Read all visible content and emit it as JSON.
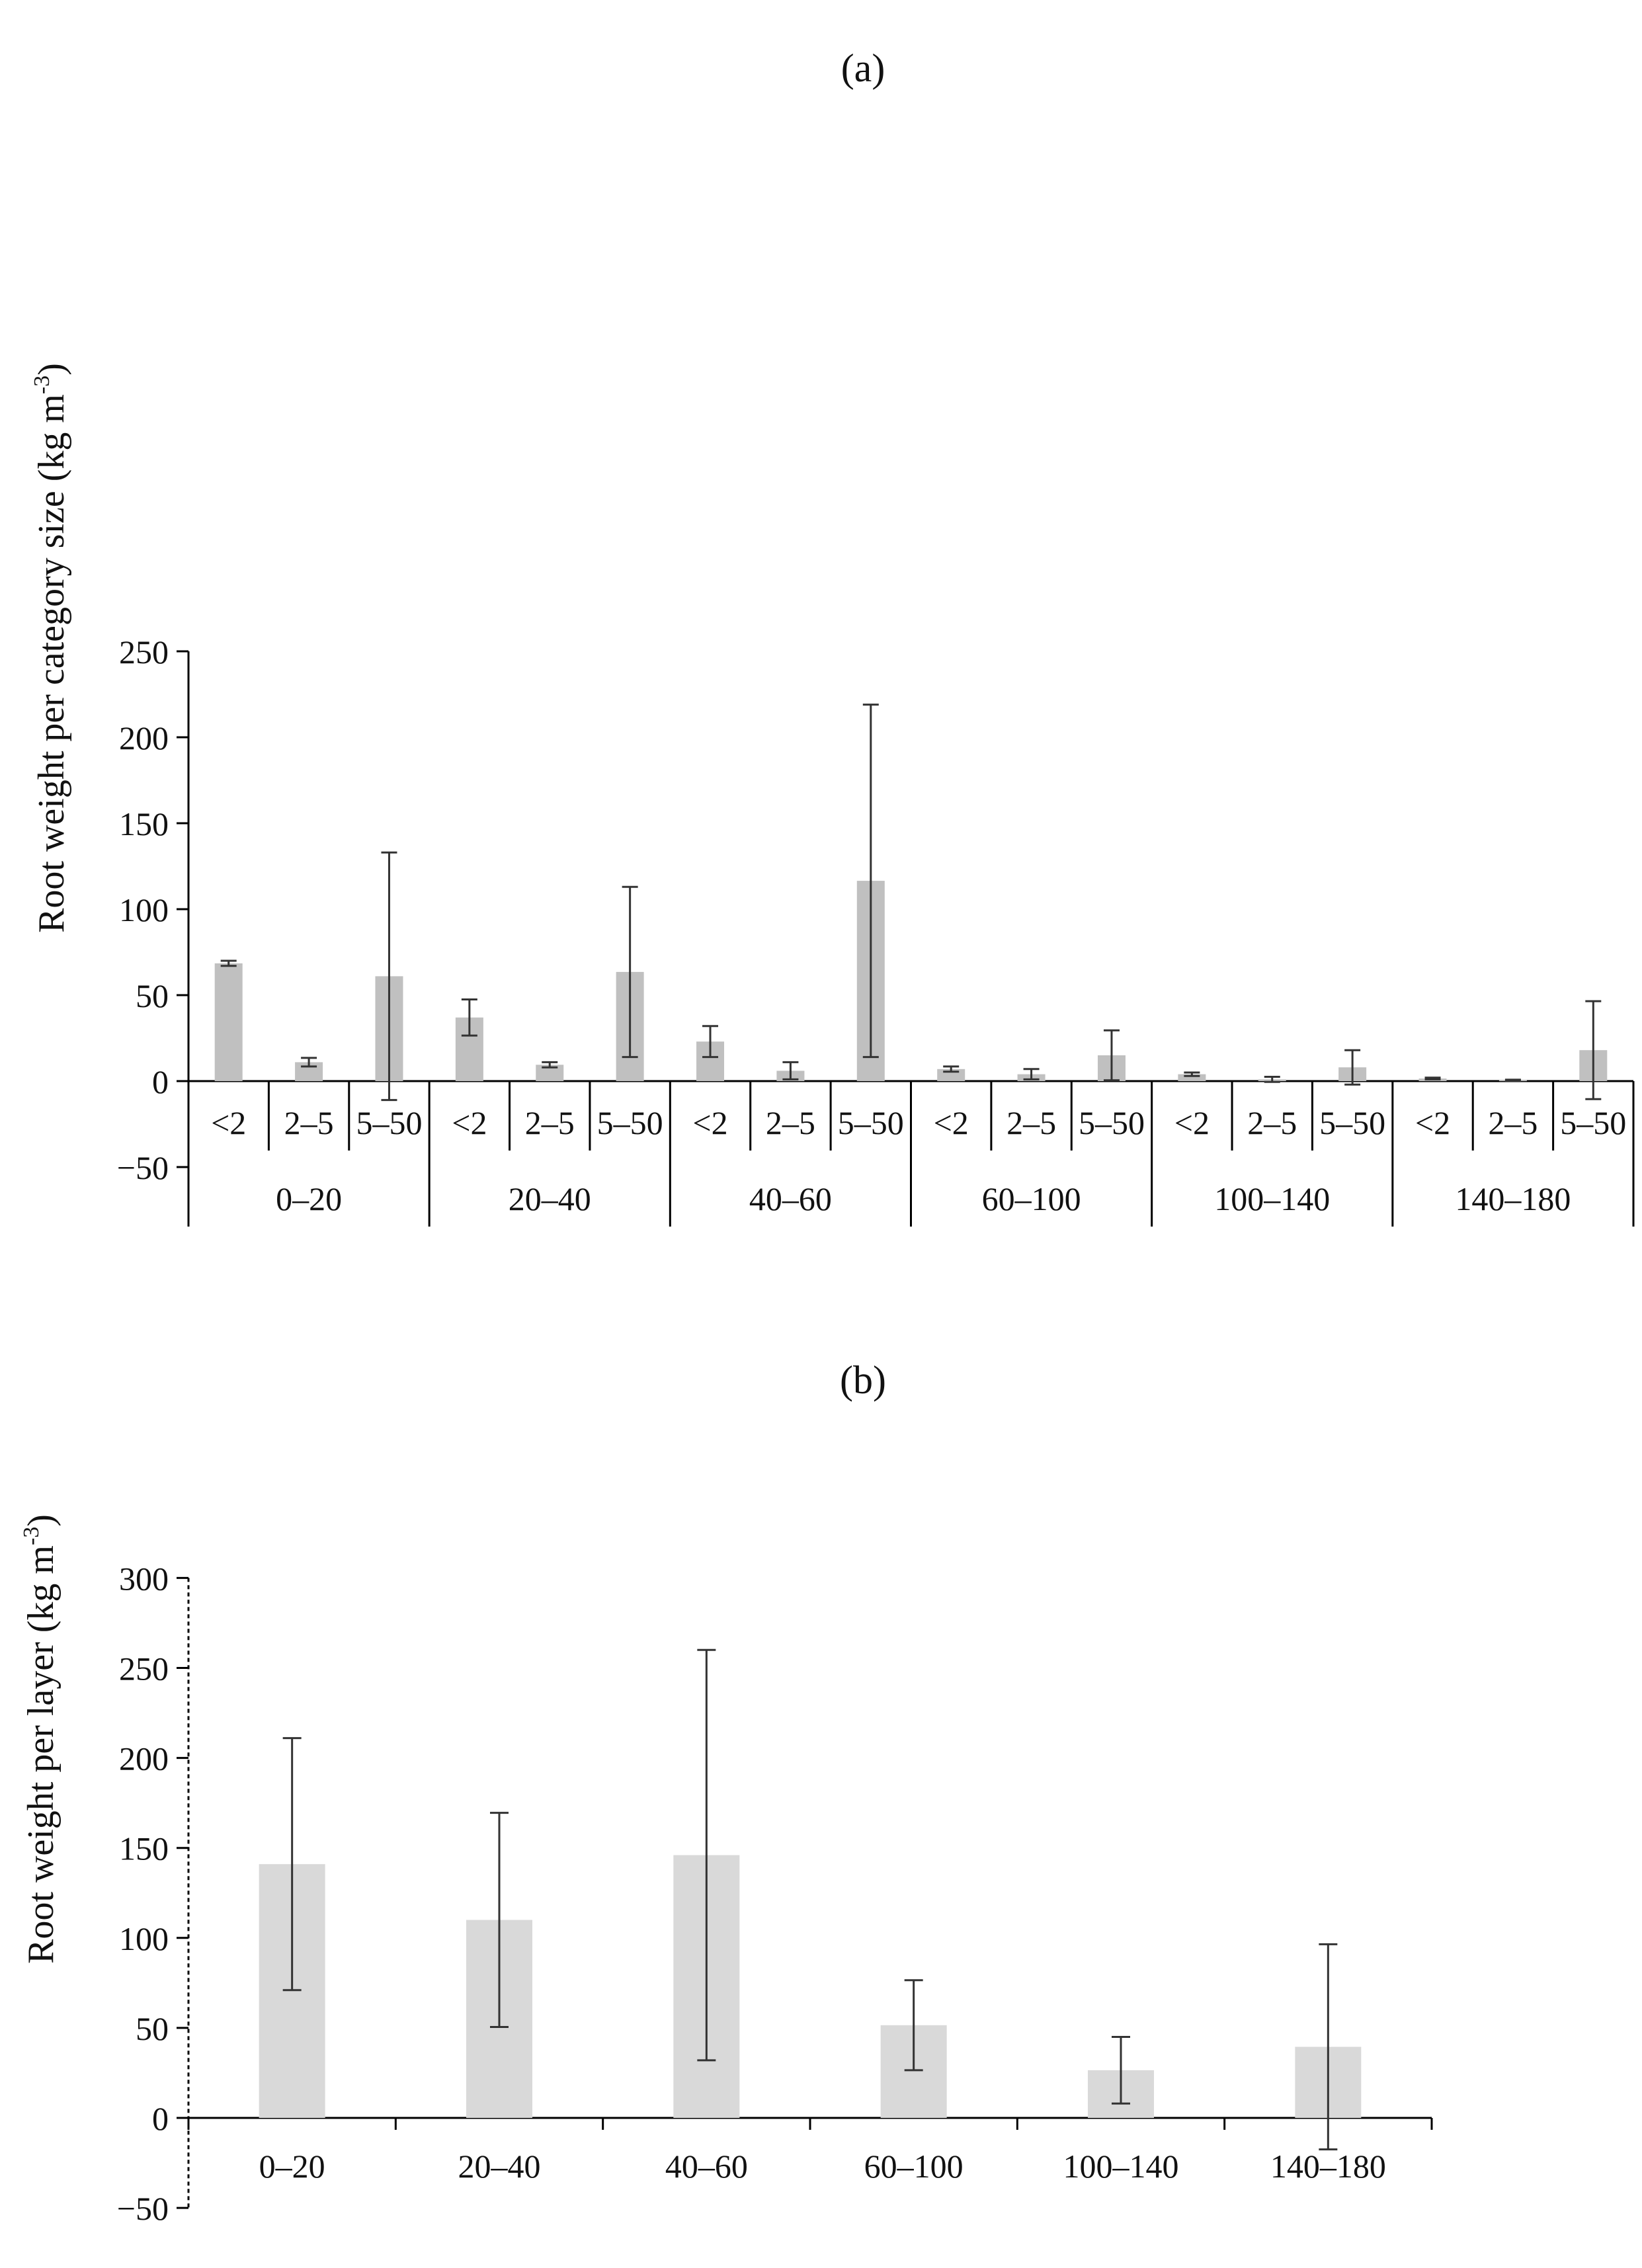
{
  "chart_data": [
    {
      "panel": "(a)",
      "type": "bar",
      "title": "(a)",
      "ylabel": "Root weight per category size (kg m",
      "ylabel_sup": "-3",
      "ylabel_tail": ")",
      "ylim": [
        -50,
        250
      ],
      "yticks": [
        -50,
        0,
        50,
        100,
        150,
        200,
        250
      ],
      "ytick_labels": [
        "−50",
        "0",
        "50",
        "100",
        "150",
        "200",
        "250"
      ],
      "bar_color": "#c0c0c0",
      "groups": [
        "0–20",
        "20–40",
        "40–60",
        "60–100",
        "100–140",
        "140–180"
      ],
      "subcategories": [
        "<2",
        "2–5",
        "5–50"
      ],
      "values": [
        [
          68.5,
          11.0,
          61.0
        ],
        [
          37.0,
          9.5,
          63.5
        ],
        [
          23.0,
          6.0,
          116.5
        ],
        [
          7.0,
          4.0,
          15.0
        ],
        [
          4.0,
          1.0,
          8.0
        ],
        [
          1.5,
          0.5,
          18.0
        ]
      ],
      "errors": [
        [
          1.5,
          2.5,
          72.0
        ],
        [
          10.5,
          1.5,
          49.5
        ],
        [
          9.0,
          5.0,
          102.5
        ],
        [
          1.5,
          3.0,
          14.5
        ],
        [
          1.0,
          1.5,
          10.0
        ],
        [
          0.5,
          0.3,
          28.5
        ]
      ]
    },
    {
      "panel": "(b)",
      "type": "bar",
      "title": "(b)",
      "ylabel": "Root weight per layer (kg m",
      "ylabel_sup": "-3",
      "ylabel_tail": ")",
      "ylim": [
        -50,
        300
      ],
      "yticks": [
        -50,
        0,
        50,
        100,
        150,
        200,
        250,
        300
      ],
      "ytick_labels": [
        "−50",
        "0",
        "50",
        "100",
        "150",
        "200",
        "250",
        "300"
      ],
      "bar_color": "#d9d9d9",
      "categories": [
        "0–20",
        "20–40",
        "40–60",
        "60–100",
        "100–140",
        "140–180"
      ],
      "values": [
        141,
        110,
        146,
        51.5,
        26.5,
        39.5
      ],
      "errors": [
        70,
        59.5,
        114,
        25,
        18.5,
        57
      ]
    }
  ]
}
